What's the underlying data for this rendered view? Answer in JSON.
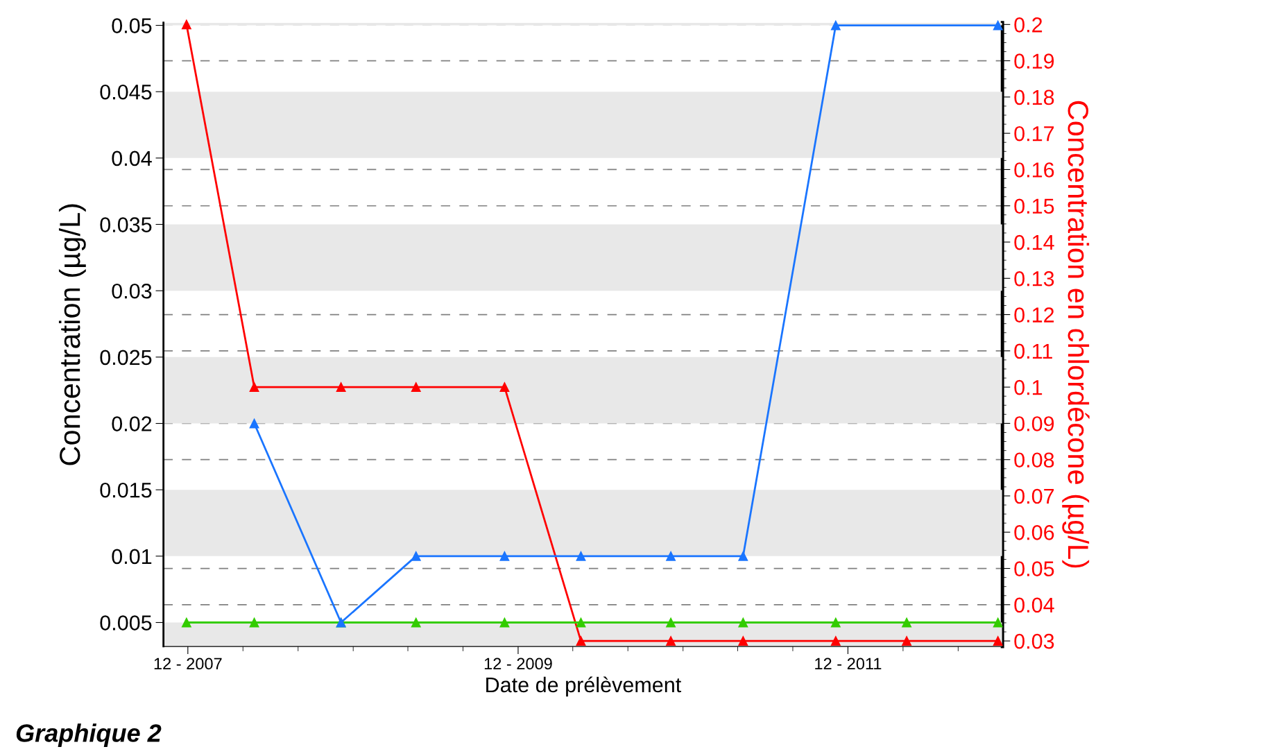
{
  "chart_data": {
    "type": "line",
    "xlabel": "Date de prélèvement",
    "ylabel": "Concentration (µg/L)",
    "y2label": "Concentration en chlordécone (µg/L)",
    "x": [
      "2007-11-28",
      "2008-04-26",
      "2008-11-04",
      "2009-04-19",
      "2009-11-01",
      "2010-04-19",
      "2010-11-04",
      "2011-04-13",
      "2011-11-04",
      "2012-04-09",
      "2012-10-28"
    ],
    "series": [
      {
        "color": "#1a75ff",
        "x": [
          "2008-04-26",
          "2008-11-04",
          "2009-04-19",
          "2009-11-01",
          "2010-04-19",
          "2010-11-04",
          "2011-04-13",
          "2011-11-04",
          "2012-10-28"
        ],
        "values": [
          0.02,
          0.005,
          0.01,
          0.01,
          0.01,
          0.01,
          0.01,
          0.05,
          0.05
        ]
      },
      {
        "color": "#33cc00",
        "values": [
          0.005,
          0.005,
          0.005,
          0.005,
          0.005,
          0.005,
          0.005,
          0.005,
          0.005,
          0.005,
          0.005
        ]
      },
      {
        "color": "#ff0000",
        "axis": "y2",
        "values": [
          0.2,
          0.1,
          0.1,
          0.1,
          0.1,
          0.03,
          0.03,
          0.03,
          0.03,
          0.03,
          0.03
        ]
      }
    ],
    "xlim": [
      "2007-10-08",
      "2012-11-07"
    ],
    "xticks": [
      {
        "value": "2007-12-01",
        "label": "12 - 2007"
      },
      {
        "value": "2009-12-01",
        "label": "12 - 2009"
      },
      {
        "value": "2011-12-01",
        "label": "12 - 2011"
      }
    ],
    "ylim": [
      0.0032,
      0.0502
    ],
    "yticks": [
      0.005,
      0.01,
      0.015,
      0.02,
      0.025,
      0.03,
      0.035,
      0.04,
      0.045,
      0.05
    ],
    "y2lim": [
      0.0285,
      0.2005
    ],
    "y2ticks": [
      0.03,
      0.04,
      0.05,
      0.06,
      0.07,
      0.08,
      0.09,
      0.1,
      0.11,
      0.12,
      0.13,
      0.14,
      0.15,
      0.16,
      0.17,
      0.18,
      0.19,
      0.2
    ],
    "bands": [
      {
        "axis": "y",
        "from": 0.0032,
        "to": 0.005,
        "color": "#e8e8e8"
      },
      {
        "axis": "y",
        "from": 0.01,
        "to": 0.015,
        "color": "#e8e8e8"
      },
      {
        "axis": "y",
        "from": 0.02,
        "to": 0.025,
        "color": "#e8e8e8"
      },
      {
        "axis": "y",
        "from": 0.03,
        "to": 0.035,
        "color": "#e8e8e8"
      },
      {
        "axis": "y",
        "from": 0.04,
        "to": 0.045,
        "color": "#e8e8e8"
      },
      {
        "axis": "y",
        "from": 0.05,
        "to": 0.0502,
        "color": "#e8e8e8"
      }
    ],
    "grid": "y2",
    "marker": "triangle",
    "line_style": "solid",
    "annotations": [
      "Graphique 2"
    ]
  }
}
